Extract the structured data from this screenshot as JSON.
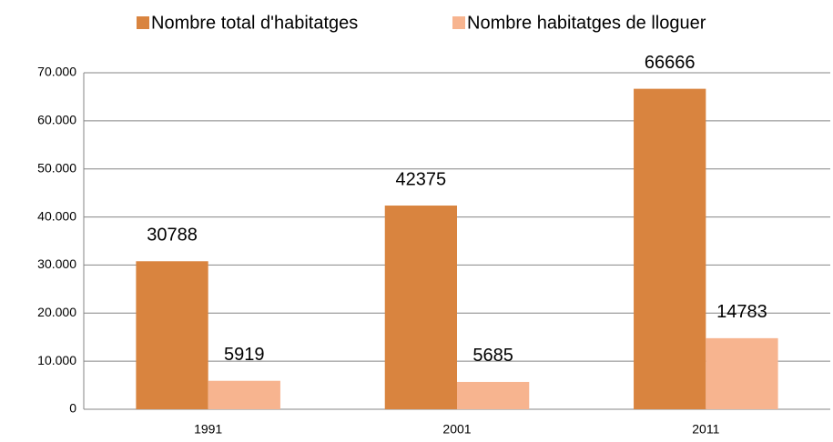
{
  "chart_data": {
    "type": "bar",
    "categories": [
      "1991",
      "2001",
      "2011"
    ],
    "series": [
      {
        "name": "Nombre total d'habitatges",
        "color": "#d9843f",
        "values": [
          30788,
          42375,
          66666
        ]
      },
      {
        "name": "Nombre habitatges de lloguer",
        "color": "#f7b48f",
        "values": [
          5919,
          5685,
          14783
        ]
      }
    ],
    "ylim": [
      0,
      70000
    ],
    "yticks": [
      0,
      {
        "value": 10000,
        "label": "10.000"
      },
      {
        "value": 20000,
        "label": "20.000"
      },
      {
        "value": 30000,
        "label": "30.000"
      },
      {
        "value": 40000,
        "label": "40.000"
      },
      {
        "value": 50000,
        "label": "50.000"
      },
      {
        "value": 60000,
        "label": "60.000"
      },
      {
        "value": 70000,
        "label": "70.000"
      }
    ],
    "grid": true,
    "legend": "top"
  }
}
